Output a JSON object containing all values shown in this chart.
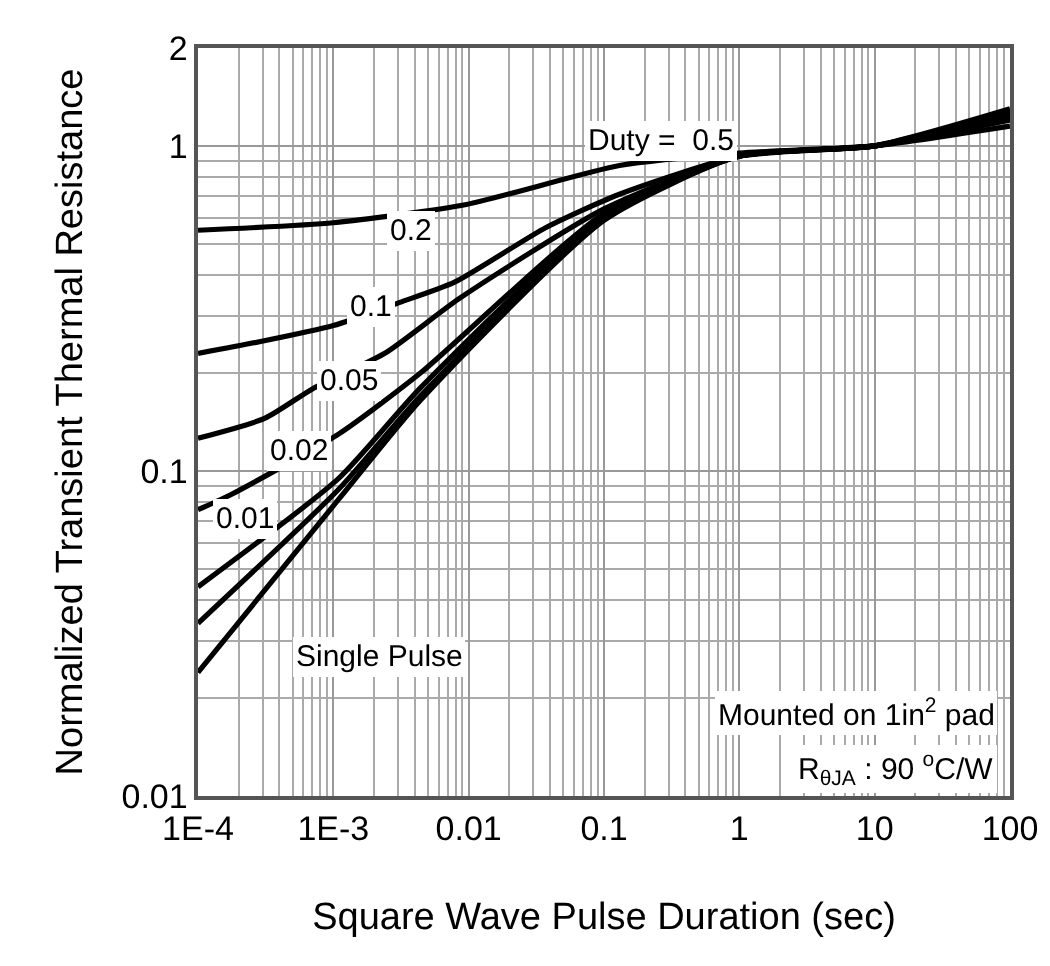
{
  "chart_data": {
    "type": "line",
    "xlabel": "Square Wave Pulse Duration (sec)",
    "ylabel": "Normalized Transient Thermal Resistance",
    "log": "xy",
    "grid": true,
    "line_style": "solid",
    "marker": "none",
    "xlim": [
      0.0001,
      100
    ],
    "ylim": [
      0.01,
      2
    ],
    "xticks": [
      {
        "value": 0.0001,
        "label": "1E-4"
      },
      {
        "value": 0.001,
        "label": "1E-3"
      },
      0.01,
      0.1,
      1,
      10,
      100
    ],
    "yticks": [
      0.01,
      0.1,
      1,
      2
    ],
    "series": [
      {
        "color": "#000000",
        "x": [
          0.0001,
          0.001,
          0.0096,
          0.13,
          1,
          10,
          100
        ],
        "values": [
          0.55,
          0.58,
          0.66,
          0.87,
          0.95,
          1.0,
          1.15
        ]
      },
      {
        "color": "#000000",
        "x": [
          0.0001,
          0.00029,
          0.001,
          0.0031,
          0.0078,
          0.037,
          0.13,
          1,
          10,
          100
        ],
        "values": [
          0.23,
          0.25,
          0.28,
          0.33,
          0.38,
          0.56,
          0.71,
          0.93,
          1.0,
          1.2
        ]
      },
      {
        "color": "#000000",
        "x": [
          0.0001,
          0.00031,
          0.00072,
          0.0024,
          0.0086,
          0.1,
          1,
          10,
          100
        ],
        "values": [
          0.126,
          0.145,
          0.18,
          0.23,
          0.34,
          0.64,
          0.93,
          1.0,
          1.22
        ]
      },
      {
        "color": "#000000",
        "x": [
          0.0001,
          0.00017,
          0.0011,
          0.0044,
          0.1,
          1,
          10,
          100
        ],
        "values": [
          0.076,
          0.084,
          0.13,
          0.2,
          0.62,
          0.93,
          1.0,
          1.24
        ]
      },
      {
        "color": "#000000",
        "x": [
          0.0001,
          0.0011,
          0.0044,
          0.1,
          1,
          10,
          100
        ],
        "values": [
          0.044,
          0.095,
          0.18,
          0.61,
          0.93,
          1.0,
          1.26
        ]
      },
      {
        "color": "#000000",
        "x": [
          0.0001,
          0.0011,
          0.0044,
          0.1,
          1,
          10,
          100
        ],
        "values": [
          0.034,
          0.088,
          0.17,
          0.6,
          0.93,
          1.0,
          1.28
        ]
      },
      {
        "color": "#000000",
        "x": [
          0.0001,
          0.0011,
          0.0044,
          0.1,
          1,
          10,
          100
        ],
        "values": [
          0.024,
          0.082,
          0.165,
          0.59,
          0.93,
          1.0,
          1.3
        ]
      }
    ],
    "annotations": [
      "Duty =  0.5",
      {
        "text": "0.2",
        "x": 0.0037,
        "y": 0.55
      },
      {
        "text": "0.1",
        "x": 0.0019,
        "y": 0.32
      },
      {
        "text": "0.05",
        "x": 0.0013,
        "y": 0.19
      },
      {
        "text": "0.02",
        "x": 0.00055,
        "y": 0.115
      },
      {
        "text": "0.01",
        "x": 0.00022,
        "y": 0.071
      },
      "Single Pulse",
      "Mounted on 1in$^{2}$ pad",
      "R$_{θJA}$ : 90 $^{o}$C/W"
    ]
  }
}
